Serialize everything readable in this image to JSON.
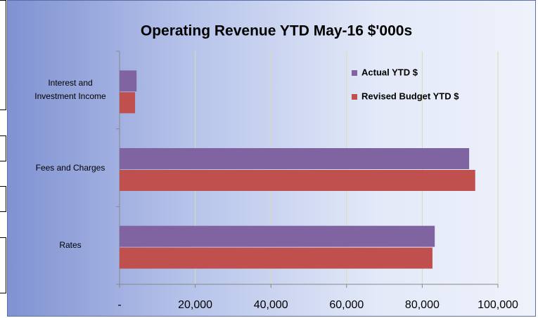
{
  "chart_data": {
    "type": "hbar",
    "title": "Operating Revenue YTD May-16 $'000s",
    "categories": [
      "Interest and Investment Income",
      "Fees and Charges",
      "Rates"
    ],
    "series": [
      {
        "name": "Actual YTD $",
        "color": "#8064a2",
        "values": [
          4500,
          92400,
          83300
        ]
      },
      {
        "name": "Revised Budget YTD $",
        "color": "#c0504d",
        "values": [
          4100,
          94000,
          82700
        ]
      }
    ],
    "xlim": [
      0,
      100000
    ],
    "xticks": [
      {
        "value": 0,
        "label": "-"
      },
      {
        "value": 20000,
        "label": "20,000"
      },
      {
        "value": 40000,
        "label": "40,000"
      },
      {
        "value": 60000,
        "label": "60,000"
      },
      {
        "value": 80000,
        "label": "80,000"
      },
      {
        "value": 100000,
        "label": "100,000"
      }
    ],
    "grid": true,
    "legend": "top-right"
  }
}
